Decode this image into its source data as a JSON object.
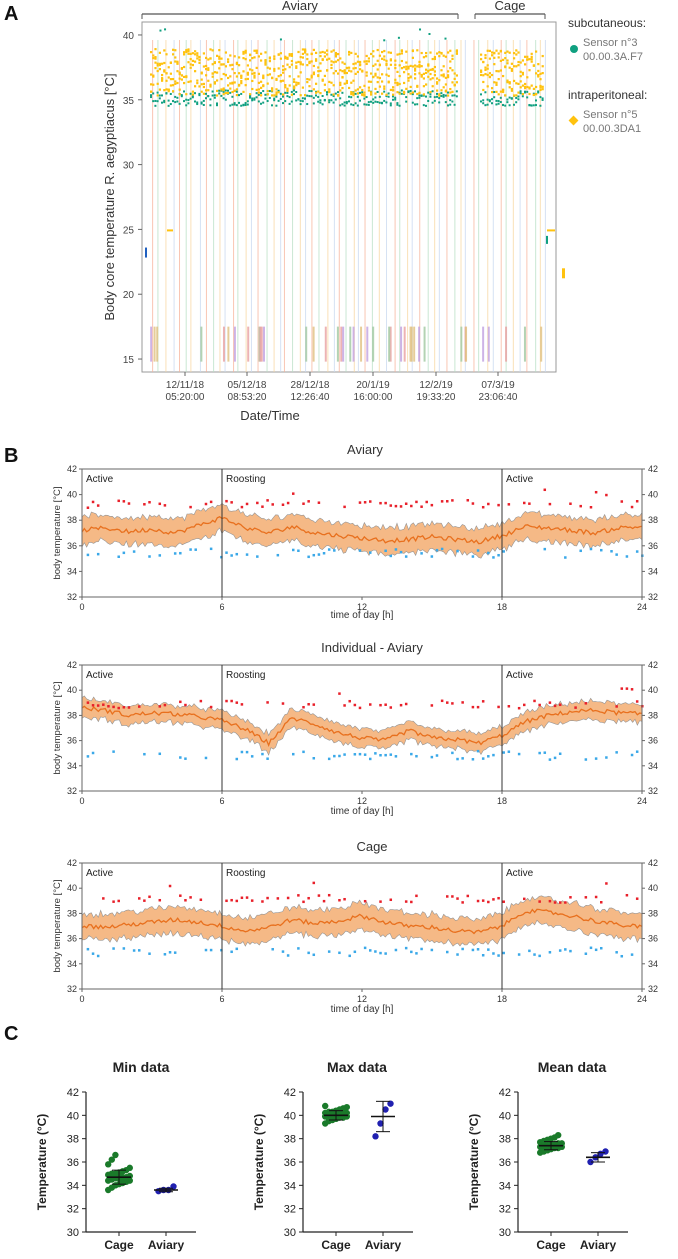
{
  "colors": {
    "orange": "#ffc20e",
    "teal": "#10a080",
    "red": "#e8202a",
    "blue": "#3aa8e8",
    "band": "#f5b27a",
    "line": "#e8701e",
    "green": "#1a7a2a",
    "navy": "#2020b0"
  },
  "panels": {
    "a": "A",
    "b": "B",
    "c": "C"
  },
  "chart_data": [
    {
      "id": "A",
      "type": "scatter",
      "ylabel": "Body core temperature R. aegyptiacus [°C]",
      "xlabel": "Date/Time",
      "ylim": [
        14,
        41
      ],
      "yticks": [
        "15",
        "20",
        "25",
        "30",
        "35",
        "40"
      ],
      "xticks": [
        {
          "l1": "12/11/18",
          "l2": "05:20:00"
        },
        {
          "l1": "05/12/18",
          "l2": "08:53:20"
        },
        {
          "l1": "28/12/18",
          "l2": "12:26:40"
        },
        {
          "l1": "20/1/19",
          "l2": "16:00:00"
        },
        {
          "l1": "12/2/19",
          "l2": "19:33:20"
        },
        {
          "l1": "07/3/19",
          "l2": "23:06:40"
        }
      ],
      "periods": [
        "Aviary",
        "Cage"
      ],
      "legend": {
        "subcut_title": "subcutaneous:",
        "subcut_sensor": "Sensor n°3",
        "subcut_id": "00.00.3A.F7",
        "intra_title": "intraperitoneal:",
        "intra_sensor": "Sensor n°5",
        "intra_id": "00.00.3DA1"
      },
      "series": [
        {
          "name": "subcutaneous",
          "typical_range": [
            34.5,
            36.0
          ]
        },
        {
          "name": "intraperitoneal",
          "typical_range": [
            35.5,
            38.5
          ]
        }
      ]
    },
    {
      "id": "B1",
      "type": "line",
      "title": "Aviary",
      "ylabel": "body temperature [°C]",
      "xlabel": "time of day [h]",
      "xlim": [
        0,
        24
      ],
      "ylim": [
        32,
        42
      ],
      "xticks": [
        "0",
        "6",
        "12",
        "18",
        "24"
      ],
      "yticks": [
        "32",
        "34",
        "36",
        "38",
        "40",
        "42"
      ],
      "phases": [
        "Active",
        "Roosting",
        "Active"
      ],
      "mean": [
        37.2,
        37.4,
        37.1,
        37.3,
        37.0,
        37.6,
        38.2,
        37.4,
        37.0,
        37.5,
        37.0,
        36.8,
        36.6,
        36.4,
        36.5,
        36.7,
        36.5,
        36.3,
        36.8,
        37.5,
        37.4,
        37.2,
        37.0,
        37.4,
        37.5
      ],
      "sd": 1.0,
      "max_line": 39.3,
      "min_line": 35.6
    },
    {
      "id": "B2",
      "type": "line",
      "title": "Individual - Aviary",
      "ylabel": "body temperature [°C]",
      "xlabel": "time of day [h]",
      "xlim": [
        0,
        24
      ],
      "ylim": [
        32,
        42
      ],
      "xticks": [
        "0",
        "6",
        "12",
        "18",
        "24"
      ],
      "yticks": [
        "32",
        "34",
        "36",
        "38",
        "40",
        "42"
      ],
      "phases": [
        "Active",
        "Roosting",
        "Active"
      ],
      "mean": [
        38.6,
        38.4,
        38.0,
        38.2,
        38.1,
        37.9,
        37.6,
        36.9,
        35.8,
        37.8,
        37.3,
        36.6,
        36.2,
        36.0,
        36.8,
        36.2,
        36.1,
        35.8,
        36.4,
        37.5,
        38.0,
        38.3,
        38.4,
        38.2,
        38.1
      ],
      "sd": 0.7,
      "max_line": 38.9,
      "min_line": 35.0
    },
    {
      "id": "B3",
      "type": "line",
      "title": "Cage",
      "ylabel": "body temperature [°C]",
      "xlabel": "time of day [h]",
      "xlim": [
        0,
        24
      ],
      "ylim": [
        32,
        42
      ],
      "xticks": [
        "0",
        "6",
        "12",
        "18",
        "24"
      ],
      "yticks": [
        "32",
        "34",
        "36",
        "38",
        "40",
        "42"
      ],
      "phases": [
        "Active",
        "Roosting",
        "Active"
      ],
      "mean": [
        37.0,
        36.9,
        37.1,
        37.3,
        37.5,
        37.3,
        37.0,
        36.6,
        36.9,
        37.5,
        37.2,
        37.4,
        37.8,
        37.3,
        37.0,
        36.9,
        36.6,
        36.5,
        37.0,
        38.2,
        38.1,
        37.8,
        37.4,
        37.1,
        36.9
      ],
      "sd": 1.0,
      "max_line": 39.2,
      "min_line": 35.1
    },
    {
      "id": "C1",
      "type": "scatter",
      "title": "Min data",
      "ylabel": "Temperature (°C)",
      "categories": [
        "Cage",
        "Aviary"
      ],
      "ylim": [
        30,
        42
      ],
      "yticks": [
        "30",
        "32",
        "34",
        "36",
        "38",
        "40",
        "42"
      ],
      "groups": [
        {
          "name": "Cage",
          "mean": 34.7,
          "sd": 0.6,
          "values": [
            33.6,
            33.8,
            34.0,
            34.1,
            34.2,
            34.3,
            34.4,
            34.4,
            34.5,
            34.6,
            34.6,
            34.7,
            34.7,
            34.8,
            34.9,
            35.0,
            35.0,
            35.1,
            35.2,
            35.3,
            35.5,
            35.8,
            36.2,
            36.6
          ]
        },
        {
          "name": "Aviary",
          "mean": 33.6,
          "sd": 0.15,
          "values": [
            33.5,
            33.6,
            33.6,
            33.9
          ]
        }
      ]
    },
    {
      "id": "C2",
      "type": "scatter",
      "title": "Max data",
      "ylabel": "Temperature (°C)",
      "categories": [
        "Cage",
        "Aviary"
      ],
      "ylim": [
        30,
        42
      ],
      "yticks": [
        "30",
        "32",
        "34",
        "36",
        "38",
        "40",
        "42"
      ],
      "groups": [
        {
          "name": "Cage",
          "mean": 40.0,
          "sd": 0.4,
          "values": [
            39.3,
            39.5,
            39.6,
            39.7,
            39.8,
            39.8,
            39.9,
            39.9,
            40.0,
            40.0,
            40.0,
            40.1,
            40.1,
            40.2,
            40.2,
            40.3,
            40.3,
            40.4,
            40.5,
            40.6,
            40.7,
            40.8
          ]
        },
        {
          "name": "Aviary",
          "mean": 39.9,
          "sd": 1.3,
          "values": [
            38.2,
            39.3,
            40.5,
            41.0
          ]
        }
      ]
    },
    {
      "id": "C3",
      "type": "scatter",
      "title": "Mean data",
      "ylabel": "Temperature (°C)",
      "categories": [
        "Cage",
        "Aviary"
      ],
      "ylim": [
        30,
        42
      ],
      "yticks": [
        "30",
        "32",
        "34",
        "36",
        "38",
        "40",
        "42"
      ],
      "groups": [
        {
          "name": "Cage",
          "mean": 37.4,
          "sd": 0.35,
          "values": [
            36.8,
            36.9,
            37.0,
            37.1,
            37.2,
            37.2,
            37.3,
            37.3,
            37.4,
            37.4,
            37.5,
            37.5,
            37.6,
            37.6,
            37.7,
            37.8,
            37.9,
            38.0,
            38.1,
            38.3
          ]
        },
        {
          "name": "Aviary",
          "mean": 36.4,
          "sd": 0.4,
          "values": [
            36.0,
            36.4,
            36.7,
            36.9
          ]
        }
      ]
    }
  ]
}
